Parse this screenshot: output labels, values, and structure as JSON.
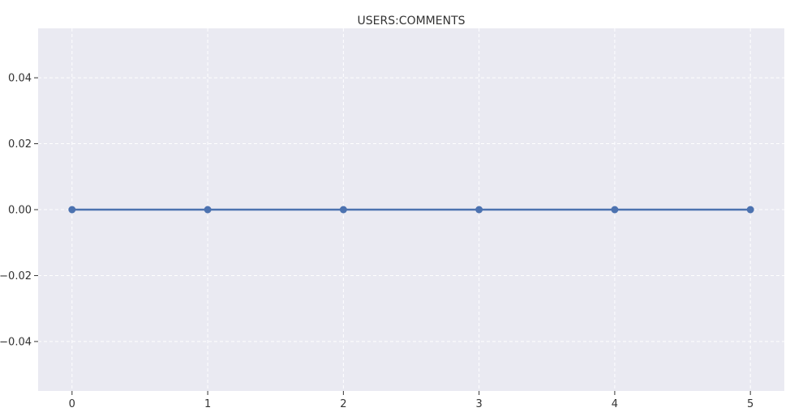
{
  "chart_data": {
    "type": "line",
    "title": "USERS:COMMENTS",
    "xlabel": "",
    "ylabel": "",
    "x": [
      0,
      1,
      2,
      3,
      4,
      5
    ],
    "series": [
      {
        "values": [
          0,
          0,
          0,
          0,
          0,
          0
        ],
        "color": "#4c72b0",
        "marker": "circle"
      }
    ],
    "xlim": [
      -0.25,
      5.25
    ],
    "ylim": [
      -0.055,
      0.055
    ],
    "xticks": [
      0,
      1,
      2,
      3,
      4,
      5
    ],
    "xtick_labels": [
      "0",
      "1",
      "2",
      "3",
      "4",
      "5"
    ],
    "yticks": [
      0.04,
      0.02,
      0.0,
      -0.02,
      -0.04
    ],
    "ytick_labels": [
      "0.04",
      "0.02",
      "0.00",
      "−0.02",
      "−0.04"
    ],
    "grid": true,
    "legend": "none",
    "background_color": "#eaeaf2",
    "grid_color": "#ffffff"
  }
}
